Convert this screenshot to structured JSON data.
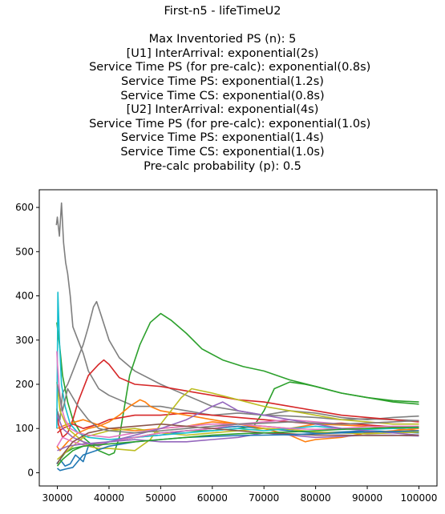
{
  "chart_data": {
    "type": "line",
    "title_lines": [
      "First-n5 - lifeTimeU2",
      "",
      "Max Inventoried PS (n): 5",
      "[U1] InterArrival: exponential(2s)",
      "    Service Time PS (for pre-calc): exponential(0.8s)",
      "Service Time PS: exponential(1.2s)",
      "Service Time CS: exponential(0.8s)",
      "[U2] InterArrival: exponential(4s)",
      "    Service Time PS (for pre-calc): exponential(1.0s)",
      "Service Time PS: exponential(1.4s)",
      "Service Time CS: exponential(1.0s)",
      "Pre-calc probability (p): 0.5"
    ],
    "xlabel": "",
    "ylabel": "",
    "xlim": [
      26500,
      103500
    ],
    "ylim": [
      -30,
      640
    ],
    "xticks": [
      30000,
      40000,
      50000,
      60000,
      70000,
      80000,
      90000,
      100000
    ],
    "yticks": [
      0,
      100,
      200,
      300,
      400,
      500,
      600
    ],
    "grid": false,
    "legend": "none",
    "series": [
      {
        "color": "#7f7f7f",
        "x": [
          29800,
          30000,
          30400,
          30800,
          31200,
          31600,
          32000,
          32500,
          33000,
          34000,
          35000,
          36000,
          38000,
          40000,
          42000,
          45000,
          50000,
          55000,
          60000,
          65000,
          70000,
          75000,
          80000,
          85000,
          90000,
          95000,
          100000
        ],
        "y": [
          560,
          578,
          535,
          610,
          520,
          475,
          450,
          400,
          330,
          300,
          270,
          230,
          190,
          175,
          165,
          150,
          150,
          140,
          130,
          135,
          130,
          128,
          125,
          120,
          122,
          120,
          118
        ]
      },
      {
        "color": "#7f7f7f",
        "x": [
          30000,
          30500,
          31000,
          32000,
          33000,
          34000,
          35000,
          36000,
          37000,
          37600,
          38500,
          40000,
          42000,
          45000,
          50000,
          55000,
          60000,
          65000,
          70000,
          75000,
          80000,
          85000,
          90000,
          95000,
          100000
        ],
        "y": [
          140,
          120,
          180,
          200,
          230,
          260,
          290,
          330,
          375,
          387,
          355,
          300,
          260,
          230,
          200,
          175,
          150,
          140,
          130,
          140,
          135,
          125,
          120,
          125,
          128
        ]
      },
      {
        "color": "#2ca02c",
        "x": [
          29900,
          30200,
          30500,
          31000,
          32000,
          33000,
          35000,
          38000,
          40000,
          41000,
          42000,
          43000,
          44000,
          46000,
          48000,
          50000,
          52000,
          55000,
          58000,
          62000,
          66000,
          70000,
          75000,
          80000,
          85000,
          90000,
          95000,
          100000
        ],
        "y": [
          340,
          310,
          280,
          220,
          160,
          120,
          80,
          50,
          40,
          45,
          80,
          150,
          220,
          290,
          340,
          360,
          345,
          315,
          280,
          255,
          240,
          230,
          210,
          195,
          180,
          170,
          163,
          160
        ]
      },
      {
        "color": "#2ca02c",
        "x": [
          29900,
          30500,
          31500,
          33000,
          35000,
          37000,
          40000,
          45000,
          50000,
          55000,
          60000,
          65000,
          68000,
          70000,
          72000,
          75000,
          78000,
          80000,
          85000,
          90000,
          95000,
          100000
        ],
        "y": [
          20,
          30,
          45,
          55,
          60,
          65,
          70,
          80,
          90,
          95,
          95,
          100,
          105,
          140,
          190,
          205,
          200,
          195,
          180,
          170,
          160,
          155
        ]
      },
      {
        "color": "#d62728",
        "x": [
          29900,
          30200,
          31000,
          32000,
          33000,
          34000,
          36000,
          38000,
          39000,
          40000,
          42000,
          45000,
          50000,
          55000,
          60000,
          65000,
          70000,
          75000,
          80000,
          85000,
          90000,
          95000,
          100000
        ],
        "y": [
          145,
          110,
          80,
          90,
          120,
          160,
          220,
          245,
          255,
          245,
          215,
          200,
          195,
          185,
          175,
          165,
          160,
          150,
          140,
          130,
          125,
          120,
          115
        ]
      },
      {
        "color": "#d62728",
        "x": [
          30000,
          31000,
          33000,
          35000,
          38000,
          40000,
          45000,
          50000,
          55000,
          60000,
          65000,
          70000,
          75000,
          80000,
          85000,
          90000,
          95000,
          100000
        ],
        "y": [
          90,
          100,
          110,
          100,
          110,
          120,
          130,
          130,
          135,
          130,
          125,
          120,
          115,
          110,
          112,
          108,
          104,
          100
        ]
      },
      {
        "color": "#1f77b4",
        "x": [
          29900,
          30500,
          31500,
          32500,
          33500,
          35000,
          36000,
          40000,
          45000,
          50000,
          55000,
          60000,
          65000,
          70000,
          75000,
          80000,
          85000,
          90000,
          95000,
          100000
        ],
        "y": [
          20,
          30,
          15,
          20,
          40,
          25,
          60,
          70,
          80,
          85,
          95,
          100,
          105,
          100,
          95,
          90,
          92,
          95,
          93,
          90
        ]
      },
      {
        "color": "#ff7f0e",
        "x": [
          29900,
          30500,
          32000,
          34000,
          36000,
          38000,
          40000,
          42000,
          44000,
          46000,
          47000,
          48000,
          50000,
          55000,
          60000,
          65000,
          70000,
          75000,
          78000,
          80000,
          85000,
          90000,
          95000,
          100000
        ],
        "y": [
          60,
          50,
          70,
          90,
          100,
          105,
          115,
          130,
          150,
          165,
          160,
          150,
          140,
          130,
          120,
          110,
          100,
          85,
          70,
          75,
          80,
          90,
          95,
          100
        ]
      },
      {
        "color": "#ff7f0e",
        "x": [
          30000,
          32000,
          35000,
          40000,
          45000,
          50000,
          55000,
          60000,
          65000,
          70000,
          75000,
          80000,
          85000,
          90000,
          95000,
          100000
        ],
        "y": [
          100,
          110,
          120,
          100,
          95,
          100,
          105,
          115,
          110,
          105,
          100,
          110,
          108,
          105,
          100,
          95
        ]
      },
      {
        "color": "#bcbd22",
        "x": [
          29900,
          30500,
          32000,
          34000,
          36000,
          38000,
          40000,
          45000,
          48000,
          50000,
          52000,
          54000,
          56000,
          60000,
          65000,
          70000,
          75000,
          80000,
          85000,
          90000,
          95000,
          100000
        ],
        "y": [
          205,
          140,
          100,
          80,
          60,
          55,
          55,
          50,
          75,
          110,
          140,
          170,
          190,
          180,
          165,
          150,
          140,
          130,
          120,
          115,
          110,
          110
        ]
      },
      {
        "color": "#bcbd22",
        "x": [
          30000,
          32000,
          35000,
          40000,
          45000,
          50000,
          55000,
          60000,
          65000,
          70000,
          75000,
          80000,
          85000,
          90000,
          95000,
          100000
        ],
        "y": [
          30,
          50,
          80,
          95,
          100,
          90,
          85,
          90,
          95,
          100,
          98,
          92,
          90,
          88,
          90,
          92
        ]
      },
      {
        "color": "#17becf",
        "x": [
          29900,
          30100,
          30400,
          30800,
          31500,
          32500,
          34000,
          36000,
          40000,
          45000,
          50000,
          55000,
          60000,
          65000,
          70000,
          75000,
          80000,
          85000,
          90000,
          95000,
          100000
        ],
        "y": [
          100,
          408,
          300,
          200,
          150,
          110,
          90,
          80,
          75,
          80,
          85,
          90,
          95,
          100,
          95,
          100,
          105,
          100,
          98,
          100,
          102
        ]
      },
      {
        "color": "#e377c2",
        "x": [
          29900,
          30000,
          30300,
          30700,
          31500,
          32500,
          34000,
          36000,
          40000,
          45000,
          50000,
          55000,
          60000,
          65000,
          70000,
          75000,
          80000,
          85000,
          90000,
          95000,
          100000
        ],
        "y": [
          275,
          250,
          200,
          150,
          120,
          100,
          90,
          85,
          80,
          90,
          100,
          105,
          110,
          110,
          105,
          100,
          98,
          100,
          104,
          105,
          105
        ]
      },
      {
        "color": "#e377c2",
        "x": [
          30000,
          31000,
          33000,
          36000,
          40000,
          45000,
          50000,
          55000,
          60000,
          65000,
          70000,
          75000,
          80000,
          85000,
          90000,
          95000,
          100000
        ],
        "y": [
          60,
          80,
          70,
          60,
          70,
          80,
          90,
          95,
          100,
          110,
          115,
          120,
          115,
          110,
          112,
          115,
          118
        ]
      },
      {
        "color": "#9467bd",
        "x": [
          30000,
          31000,
          33000,
          35000,
          38000,
          40000,
          45000,
          50000,
          55000,
          60000,
          62000,
          65000,
          70000,
          75000,
          80000,
          85000,
          90000,
          95000,
          100000
        ],
        "y": [
          130,
          100,
          80,
          70,
          60,
          70,
          85,
          100,
          120,
          150,
          160,
          140,
          130,
          120,
          110,
          100,
          95,
          90,
          85
        ]
      },
      {
        "color": "#9467bd",
        "x": [
          30000,
          32000,
          35000,
          40000,
          45000,
          50000,
          55000,
          60000,
          65000,
          70000,
          75000,
          80000,
          85000,
          90000,
          95000,
          100000
        ],
        "y": [
          50,
          60,
          65,
          70,
          75,
          70,
          70,
          75,
          80,
          90,
          85,
          80,
          82,
          85,
          85,
          83
        ]
      },
      {
        "color": "#8c564b",
        "x": [
          30000,
          31000,
          33000,
          36000,
          40000,
          45000,
          50000,
          55000,
          60000,
          65000,
          70000,
          75000,
          80000,
          85000,
          90000,
          95000,
          100000
        ],
        "y": [
          20,
          40,
          70,
          90,
          100,
          105,
          110,
          105,
          100,
          95,
          90,
          88,
          85,
          85,
          84,
          84,
          85
        ]
      },
      {
        "color": "#1f77b4",
        "x": [
          30000,
          30500,
          31500,
          33000,
          35000,
          40000,
          45000,
          50000,
          55000,
          60000,
          65000,
          70000,
          75000,
          80000,
          85000,
          90000,
          95000,
          100000
        ],
        "y": [
          10,
          5,
          8,
          12,
          40,
          60,
          70,
          75,
          80,
          82,
          84,
          85,
          86,
          88,
          90,
          92,
          93,
          95
        ]
      },
      {
        "color": "#7f7f7f",
        "x": [
          30000,
          31000,
          32000,
          34000,
          36000,
          38000,
          40000,
          45000,
          50000,
          55000,
          60000,
          65000,
          70000,
          75000,
          80000,
          85000,
          90000,
          95000,
          100000
        ],
        "y": [
          200,
          140,
          190,
          150,
          120,
          100,
          95,
          90,
          95,
          100,
          105,
          110,
          112,
          115,
          112,
          110,
          112,
          115,
          118
        ]
      },
      {
        "color": "#2ca02c",
        "x": [
          30000,
          31000,
          33000,
          35000,
          40000,
          45000,
          50000,
          55000,
          60000,
          65000,
          70000,
          75000,
          80000,
          85000,
          90000,
          95000,
          100000
        ],
        "y": [
          15,
          30,
          50,
          60,
          65,
          70,
          75,
          80,
          85,
          88,
          90,
          92,
          95,
          98,
          100,
          102,
          103
        ]
      }
    ]
  }
}
